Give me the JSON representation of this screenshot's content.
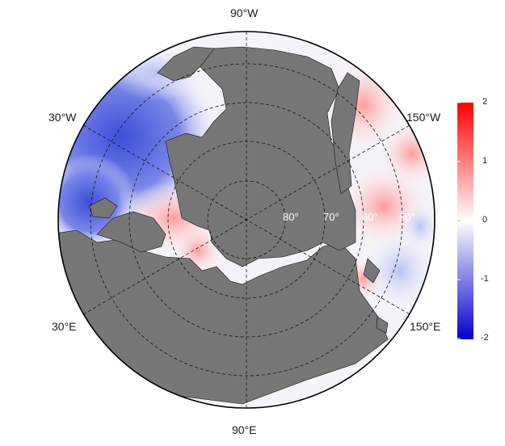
{
  "edge_labels": {
    "top": "90°W",
    "bottom": "90°E",
    "upper_left": "30°W",
    "upper_right": "150°W",
    "lower_left": "30°E",
    "lower_right": "150°E"
  },
  "lat_labels": [
    "80°",
    "70°",
    "60°",
    "50°"
  ],
  "colorbar": {
    "ticks": [
      "2",
      "1",
      "0",
      "-1",
      "-2"
    ],
    "min": -2,
    "max": 2,
    "colors": {
      "high": "#ff0000",
      "mid": "#ffffff",
      "low": "#0000cc"
    }
  },
  "colors": {
    "land": "#777777",
    "ocean_neutral": "#f2f2f2"
  }
}
